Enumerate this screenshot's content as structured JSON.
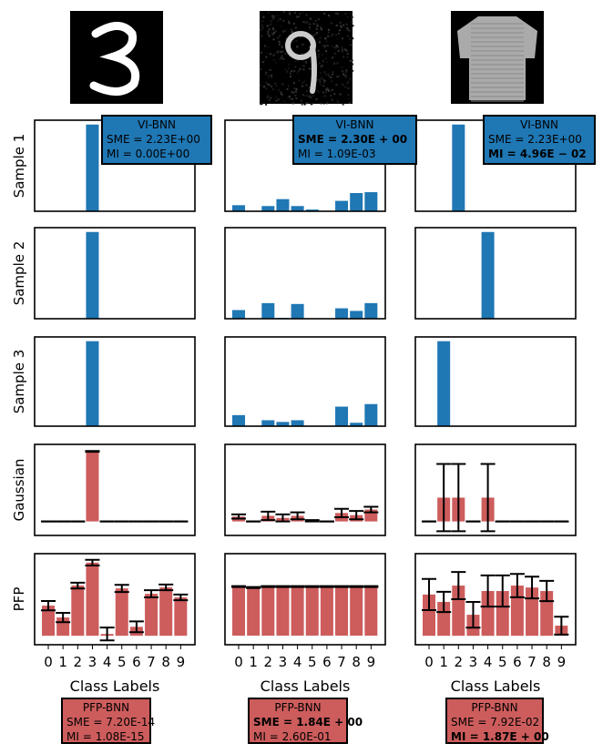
{
  "colors": {
    "vi": "#1f77b4",
    "pfp": "#cd5c5c",
    "errorbar": "#000000"
  },
  "images": [
    "mnist-digit-3",
    "noisy-mnist-digit-9",
    "fashion-mnist-tshirt"
  ],
  "xlabel": "Class Labels",
  "row_labels": [
    "Sample 1",
    "Sample 2",
    "Sample 3",
    "Gaussian",
    "PFP"
  ],
  "vi_boxes": [
    {
      "title": "VI-BNN",
      "sme": "SME = 2.23E+00",
      "mi": "MI = 0.00E+00",
      "sme_bold": false,
      "mi_bold": false
    },
    {
      "title": "VI-BNN",
      "sme": "SME =  2.30E + 00",
      "mi": "MI = 1.09E-03",
      "sme_bold": true,
      "mi_bold": false
    },
    {
      "title": "VI-BNN",
      "sme": "SME = 2.23E+00",
      "mi": "MI =  4.96E − 02",
      "sme_bold": false,
      "mi_bold": true
    }
  ],
  "pfp_boxes": [
    {
      "title": "PFP-BNN",
      "sme": "SME = 7.20E-14",
      "mi": "MI = 1.08E-15",
      "sme_bold": false,
      "mi_bold": false
    },
    {
      "title": "PFP-BNN",
      "sme": "SME =  1.84E + 00",
      "mi": "MI = 2.60E-01",
      "sme_bold": true,
      "mi_bold": false
    },
    {
      "title": "PFP-BNN",
      "sme": "SME = 7.92E-02",
      "mi": "MI =  1.87E + 00",
      "sme_bold": false,
      "mi_bold": true
    }
  ],
  "chart_data": {
    "type": "bar",
    "categories": [
      "0",
      "1",
      "2",
      "3",
      "4",
      "5",
      "6",
      "7",
      "8",
      "9"
    ],
    "xlabel": "Class Labels",
    "grid": false,
    "columns": [
      {
        "samples": [
          [
            0,
            0,
            0,
            1.0,
            0,
            0,
            0,
            0,
            0,
            0
          ],
          [
            0,
            0,
            0,
            1.0,
            0,
            0,
            0,
            0,
            0,
            0
          ],
          [
            0,
            0,
            0,
            1.0,
            0,
            0,
            0,
            0,
            0,
            0
          ]
        ],
        "gaussian": {
          "mean": [
            0,
            0,
            0,
            1.0,
            0,
            0,
            0,
            0,
            0,
            0
          ],
          "err": [
            0,
            0,
            0,
            0.005,
            0,
            0,
            0,
            0,
            0,
            0
          ]
        },
        "pfp": {
          "mean": [
            0.084,
            0.051,
            0.14,
            0.204,
            0.005,
            0.132,
            0.025,
            0.117,
            0.135,
            0.107
          ],
          "err": [
            0.013,
            0.013,
            0.008,
            0.008,
            0.018,
            0.01,
            0.015,
            0.01,
            0.008,
            0.008
          ],
          "ylim": [
            -0.025,
            0.229
          ]
        }
      },
      {
        "samples": [
          [
            0.07,
            0,
            0.06,
            0.14,
            0.06,
            0.02,
            0,
            0.12,
            0.21,
            0.22
          ],
          [
            0.1,
            0,
            0.18,
            0.01,
            0.17,
            0,
            0,
            0.12,
            0.09,
            0.18
          ],
          [
            0.13,
            0,
            0.07,
            0.05,
            0.07,
            0,
            0,
            0.23,
            0.04,
            0.26
          ]
        ],
        "gaussian": {
          "mean": [
            0.07,
            0,
            0.08,
            0.05,
            0.08,
            0.01,
            0,
            0.12,
            0.09,
            0.17
          ],
          "err": [
            0.03,
            0,
            0.06,
            0.05,
            0.05,
            0.01,
            0,
            0.06,
            0.06,
            0.04
          ]
        },
        "pfp": {
          "mean": [
            0.1,
            0.098,
            0.1,
            0.1,
            0.1,
            0.1,
            0.1,
            0.1,
            0.1,
            0.1
          ],
          "err": [
            0.001,
            0.001,
            0.001,
            0.001,
            0.001,
            0.001,
            0.001,
            0.001,
            0.001,
            0.001
          ],
          "ylim": [
            -0.0185,
            0.167
          ]
        }
      },
      {
        "samples": [
          [
            0,
            0,
            1.0,
            0,
            0,
            0,
            0,
            0,
            0,
            0
          ],
          [
            0,
            0,
            0,
            0,
            1.0,
            0,
            0,
            0,
            0,
            0
          ],
          [
            0,
            1.0,
            0,
            0,
            0,
            0,
            0,
            0,
            0,
            0
          ]
        ],
        "gaussian": {
          "mean": [
            0,
            0.34,
            0.34,
            0,
            0.34,
            0,
            0,
            0,
            0,
            0
          ],
          "err": [
            0,
            0.48,
            0.48,
            0,
            0.48,
            0,
            0,
            0,
            0,
            0
          ]
        },
        "pfp": {
          "mean": [
            0.106,
            0.087,
            0.129,
            0.054,
            0.115,
            0.115,
            0.129,
            0.124,
            0.115,
            0.026
          ],
          "err": [
            0.04,
            0.026,
            0.035,
            0.033,
            0.04,
            0.04,
            0.03,
            0.028,
            0.026,
            0.023
          ],
          "ylim": [
            -0.023,
            0.211
          ]
        }
      }
    ],
    "sample_ylim": [
      0,
      1.05
    ],
    "gaussian_ylim": [
      -0.2,
      1.1
    ],
    "xlim": [
      -0.93,
      9.97
    ]
  }
}
